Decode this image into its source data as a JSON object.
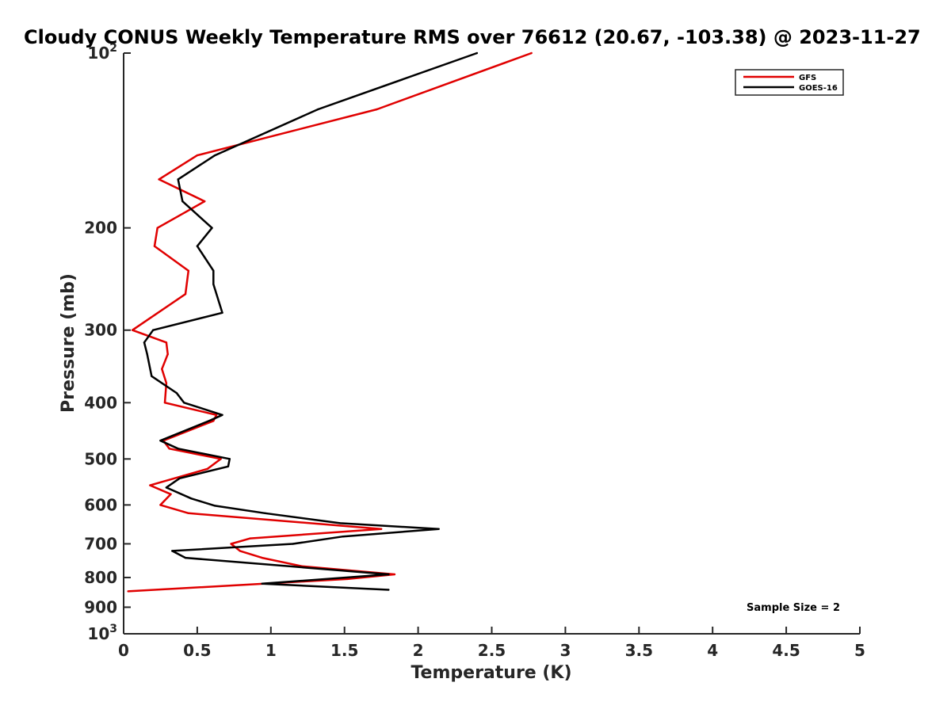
{
  "chart_data": {
    "type": "line",
    "title": "Cloudy CONUS Weekly Temperature RMS over 76612 (20.67, -103.38) @ 2023-11-27",
    "xlabel": "Temperature (K)",
    "ylabel": "Pressure (mb)",
    "xlim": [
      0,
      5
    ],
    "ylim": [
      100,
      1000
    ],
    "y_scale": "log",
    "y_reversed": true,
    "x_ticks": [
      "0",
      "0.5",
      "1",
      "1.5",
      "2",
      "2.5",
      "3",
      "3.5",
      "4",
      "4.5",
      "5"
    ],
    "y_ticks": [
      {
        "value": 100,
        "base": "10",
        "exp": "2"
      },
      {
        "value": 200,
        "base": "200",
        "exp": ""
      },
      {
        "value": 300,
        "base": "300",
        "exp": ""
      },
      {
        "value": 400,
        "base": "400",
        "exp": ""
      },
      {
        "value": 500,
        "base": "500",
        "exp": ""
      },
      {
        "value": 600,
        "base": "600",
        "exp": ""
      },
      {
        "value": 700,
        "base": "700",
        "exp": ""
      },
      {
        "value": 800,
        "base": "800",
        "exp": ""
      },
      {
        "value": 900,
        "base": "900",
        "exp": ""
      },
      {
        "value": 1000,
        "base": "10",
        "exp": "3"
      }
    ],
    "grid": false,
    "legend_position": "top-right",
    "annotation": "Sample Size = 2",
    "series": [
      {
        "name": "GFS",
        "color": "#e00000",
        "points": [
          {
            "x": 2.77,
            "y": 100
          },
          {
            "x": 1.72,
            "y": 125
          },
          {
            "x": 0.5,
            "y": 150
          },
          {
            "x": 0.24,
            "y": 165
          },
          {
            "x": 0.55,
            "y": 180
          },
          {
            "x": 0.23,
            "y": 200
          },
          {
            "x": 0.21,
            "y": 215
          },
          {
            "x": 0.44,
            "y": 237
          },
          {
            "x": 0.42,
            "y": 260
          },
          {
            "x": 0.06,
            "y": 300
          },
          {
            "x": 0.29,
            "y": 315
          },
          {
            "x": 0.3,
            "y": 330
          },
          {
            "x": 0.26,
            "y": 350
          },
          {
            "x": 0.29,
            "y": 370
          },
          {
            "x": 0.28,
            "y": 400
          },
          {
            "x": 0.63,
            "y": 420
          },
          {
            "x": 0.61,
            "y": 430
          },
          {
            "x": 0.27,
            "y": 465
          },
          {
            "x": 0.31,
            "y": 480
          },
          {
            "x": 0.66,
            "y": 500
          },
          {
            "x": 0.57,
            "y": 520
          },
          {
            "x": 0.18,
            "y": 555
          },
          {
            "x": 0.32,
            "y": 575
          },
          {
            "x": 0.25,
            "y": 600
          },
          {
            "x": 0.44,
            "y": 620
          },
          {
            "x": 1.75,
            "y": 660
          },
          {
            "x": 0.86,
            "y": 685
          },
          {
            "x": 0.73,
            "y": 700
          },
          {
            "x": 0.79,
            "y": 720
          },
          {
            "x": 0.94,
            "y": 740
          },
          {
            "x": 1.21,
            "y": 765
          },
          {
            "x": 1.84,
            "y": 790
          },
          {
            "x": 1.52,
            "y": 805
          },
          {
            "x": 0.03,
            "y": 845
          }
        ]
      },
      {
        "name": "GOES-16",
        "color": "#000000",
        "points": [
          {
            "x": 2.4,
            "y": 100
          },
          {
            "x": 1.32,
            "y": 125
          },
          {
            "x": 0.62,
            "y": 150
          },
          {
            "x": 0.37,
            "y": 165
          },
          {
            "x": 0.4,
            "y": 180
          },
          {
            "x": 0.6,
            "y": 200
          },
          {
            "x": 0.5,
            "y": 215
          },
          {
            "x": 0.61,
            "y": 237
          },
          {
            "x": 0.61,
            "y": 250
          },
          {
            "x": 0.67,
            "y": 280
          },
          {
            "x": 0.2,
            "y": 300
          },
          {
            "x": 0.14,
            "y": 315
          },
          {
            "x": 0.16,
            "y": 330
          },
          {
            "x": 0.19,
            "y": 360
          },
          {
            "x": 0.36,
            "y": 385
          },
          {
            "x": 0.41,
            "y": 400
          },
          {
            "x": 0.67,
            "y": 420
          },
          {
            "x": 0.58,
            "y": 430
          },
          {
            "x": 0.25,
            "y": 465
          },
          {
            "x": 0.37,
            "y": 480
          },
          {
            "x": 0.72,
            "y": 500
          },
          {
            "x": 0.71,
            "y": 515
          },
          {
            "x": 0.38,
            "y": 540
          },
          {
            "x": 0.29,
            "y": 560
          },
          {
            "x": 0.46,
            "y": 585
          },
          {
            "x": 0.62,
            "y": 602
          },
          {
            "x": 0.96,
            "y": 620
          },
          {
            "x": 1.47,
            "y": 645
          },
          {
            "x": 2.14,
            "y": 660
          },
          {
            "x": 1.49,
            "y": 680
          },
          {
            "x": 1.15,
            "y": 700
          },
          {
            "x": 0.33,
            "y": 720
          },
          {
            "x": 0.42,
            "y": 740
          },
          {
            "x": 1.8,
            "y": 790
          },
          {
            "x": 0.94,
            "y": 820
          },
          {
            "x": 1.8,
            "y": 840
          }
        ]
      }
    ]
  }
}
